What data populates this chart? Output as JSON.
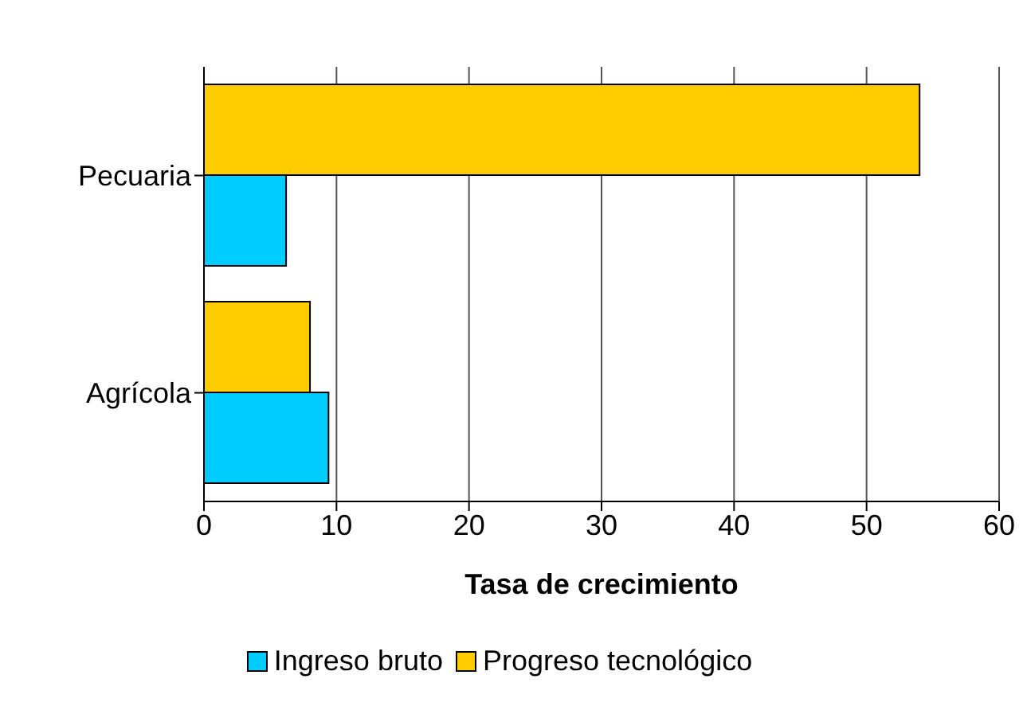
{
  "chart_data": {
    "type": "bar",
    "orientation": "horizontal",
    "categories": [
      "Pecuaria",
      "Agrícola"
    ],
    "series": [
      {
        "name": "Ingreso bruto",
        "color": "#00ccff",
        "values": [
          6.2,
          9.4
        ]
      },
      {
        "name": "Progreso tecnológico",
        "color": "#ffcc00",
        "values": [
          54,
          8.0
        ]
      }
    ],
    "xlabel": "Tasa de crecimiento",
    "xlim": [
      0,
      60
    ],
    "xticks": [
      0,
      10,
      20,
      30,
      40,
      50,
      60
    ],
    "grid": "x",
    "legend": "bottom"
  }
}
